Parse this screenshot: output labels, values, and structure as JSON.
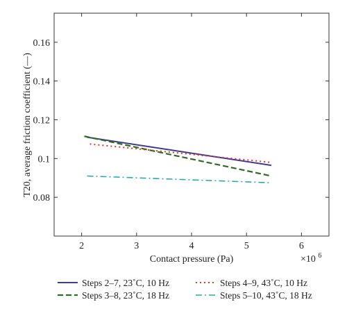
{
  "chart_data": {
    "type": "line",
    "ylabel": "T20, average friction coefficient (—)",
    "xlabel": "Contact pressure (Pa)",
    "x_multiplier": "×10",
    "x_multiplier_exponent": "6",
    "xlim": [
      1.5,
      6.5
    ],
    "ylim": [
      0.06,
      0.175
    ],
    "xticks": [
      2,
      3,
      4,
      5,
      6
    ],
    "xtick_labels": [
      "2",
      "3",
      "4",
      "5",
      "6"
    ],
    "yticks": [
      0.08,
      0.1,
      0.12,
      0.14,
      0.16
    ],
    "ytick_labels": [
      "0.08",
      "0.1",
      "0.12",
      "0.14",
      "0.16"
    ],
    "grid": false,
    "legend_position": "bottom",
    "series": [
      {
        "name": "Steps 2–7, 23˚C, 10 Hz",
        "color": "#3d3a8f",
        "dash": "solid",
        "x": [
          2.1,
          5.45
        ],
        "y": [
          0.111,
          0.0965
        ]
      },
      {
        "name": "Steps 3–8, 23˚C, 18 Hz",
        "color": "#2e6b1f",
        "dash": "dashed",
        "x": [
          2.05,
          5.45
        ],
        "y": [
          0.1115,
          0.091
        ]
      },
      {
        "name": "Steps 4–9, 43˚C, 10 Hz",
        "color": "#e0322b",
        "dash": "dotted",
        "x": [
          2.15,
          5.45
        ],
        "y": [
          0.1075,
          0.098
        ]
      },
      {
        "name": "Steps 5–10, 43˚C, 18 Hz",
        "color": "#2aa8b5",
        "dash": "dashdot",
        "x": [
          2.1,
          5.45
        ],
        "y": [
          0.091,
          0.0875
        ]
      }
    ]
  }
}
